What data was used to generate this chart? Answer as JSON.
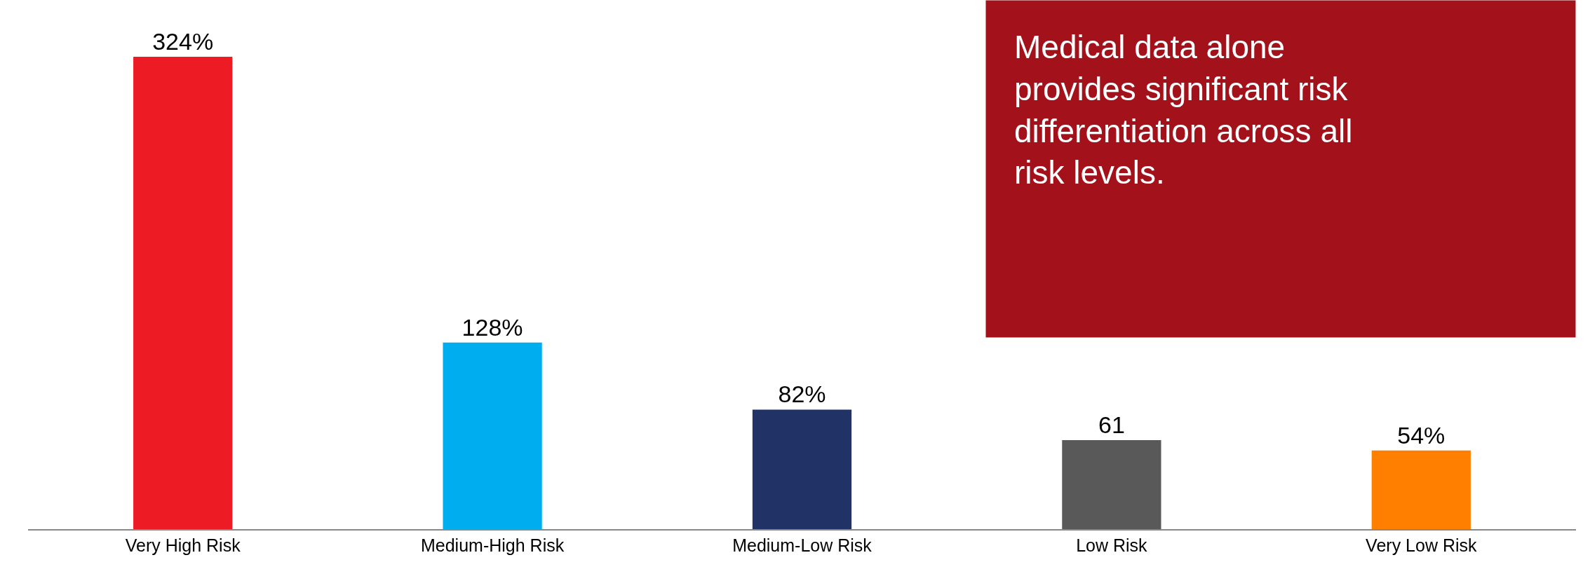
{
  "chart_data": {
    "type": "bar",
    "categories": [
      "Very High Risk",
      "Medium-High Risk",
      "Medium-Low Risk",
      "Low Risk",
      "Very Low Risk"
    ],
    "values": [
      324,
      128,
      82,
      61,
      54
    ],
    "value_labels": [
      "324%",
      "128%",
      "82%",
      "61",
      "54%"
    ],
    "colors": [
      "#ed1c24",
      "#00aeef",
      "#213266",
      "#595959",
      "#ff8000"
    ],
    "annotations": [
      "Medical data alone provides significant risk differentiation across all risk levels."
    ],
    "legend": false
  }
}
